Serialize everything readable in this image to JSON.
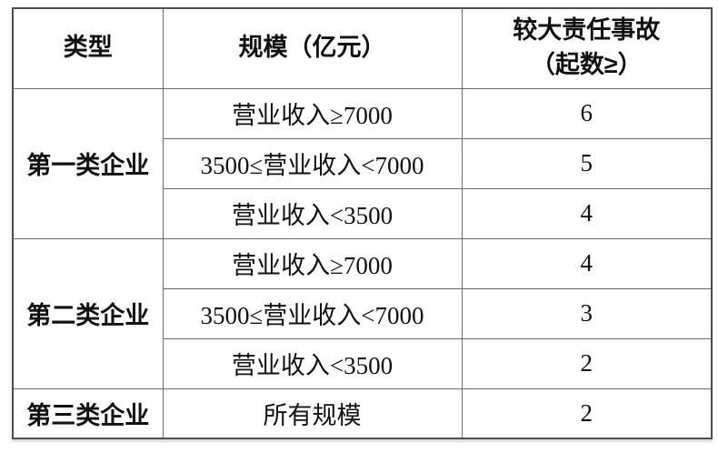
{
  "page": {
    "background": "#ffffff",
    "outer_border_color": "#4f4f4f",
    "grid_color": "#6a6a6a",
    "text_color": "#111111"
  },
  "table": {
    "header": {
      "type_label": "类型",
      "scale_label": "规模（亿元）",
      "accident_label": "较大责任事故\n（起数≥）"
    },
    "groups": [
      {
        "category": "第一类企业",
        "rows": [
          {
            "scale": "营业收入≥7000",
            "count": "6"
          },
          {
            "scale": "3500≤营业收入<7000",
            "count": "5"
          },
          {
            "scale": "营业收入<3500",
            "count": "4"
          }
        ]
      },
      {
        "category": "第二类企业",
        "rows": [
          {
            "scale": "营业收入≥7000",
            "count": "4"
          },
          {
            "scale": "3500≤营业收入<7000",
            "count": "3"
          },
          {
            "scale": "营业收入<3500",
            "count": "2"
          }
        ]
      },
      {
        "category": "第三类企业",
        "rows": [
          {
            "scale": "所有规模",
            "count": "2"
          }
        ]
      }
    ]
  },
  "chart_data": {
    "type": "table",
    "columns": [
      "类型",
      "规模（亿元）",
      "较大责任事故（起数≥）"
    ],
    "rows": [
      [
        "第一类企业",
        "营业收入≥7000",
        6
      ],
      [
        "第一类企业",
        "3500≤营业收入<7000",
        5
      ],
      [
        "第一类企业",
        "营业收入<3500",
        4
      ],
      [
        "第二类企业",
        "营业收入≥7000",
        4
      ],
      [
        "第二类企业",
        "3500≤营业收入<7000",
        3
      ],
      [
        "第二类企业",
        "营业收入<3500",
        2
      ],
      [
        "第三类企业",
        "所有规模",
        2
      ]
    ]
  }
}
